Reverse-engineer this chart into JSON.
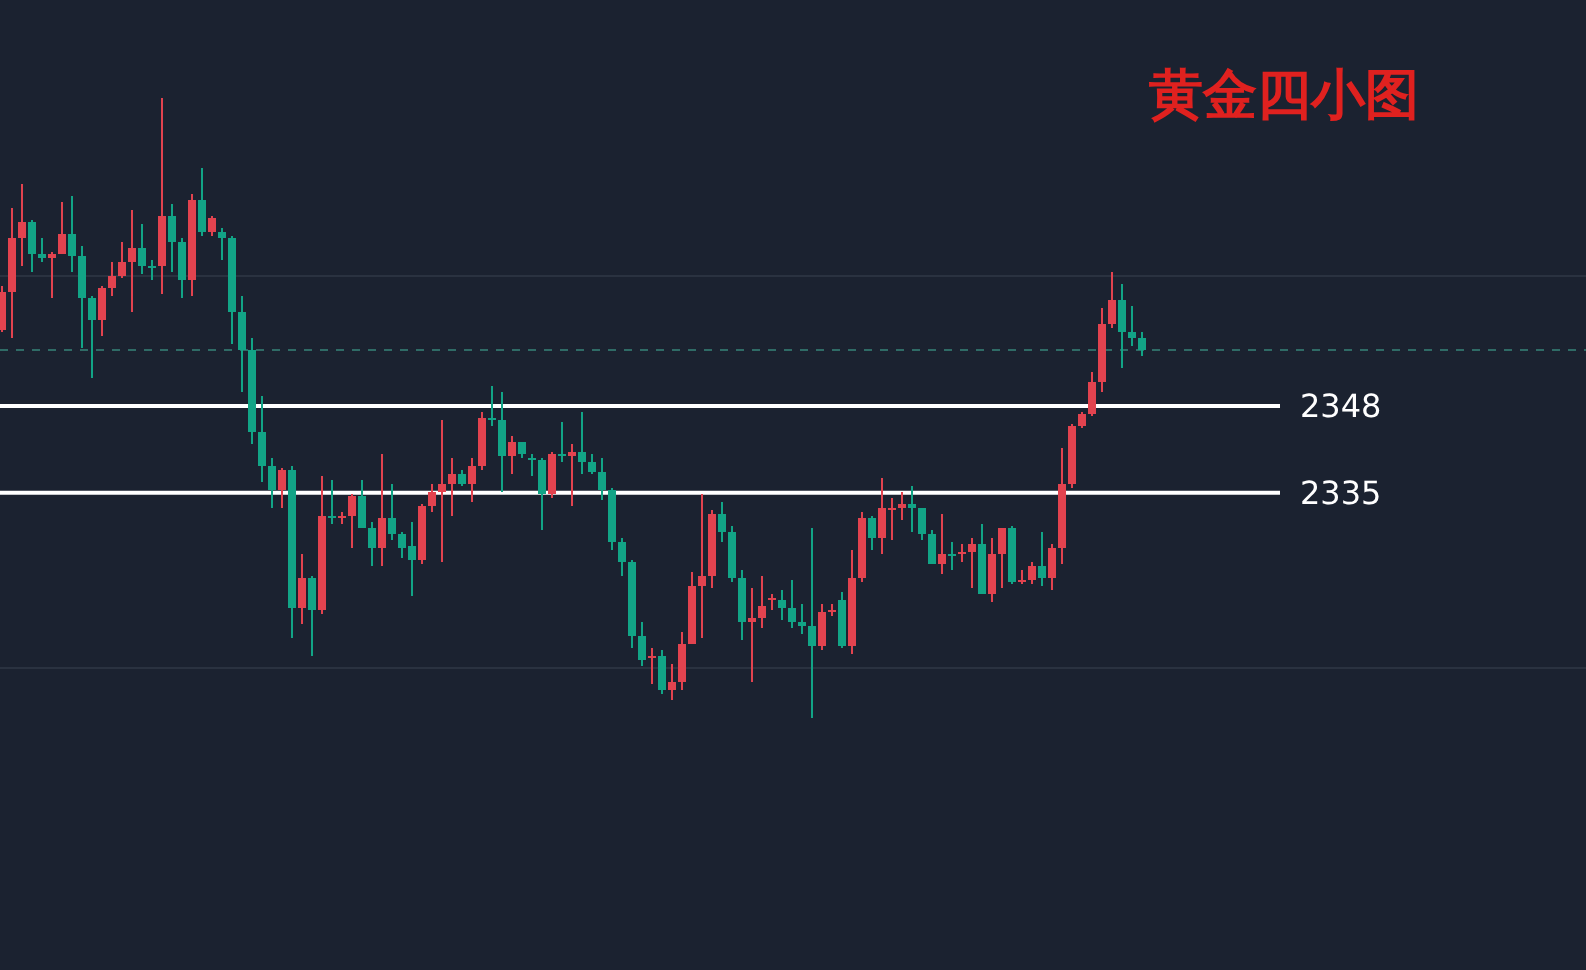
{
  "chart_data": {
    "type": "candlestick",
    "title": "黄金四小图",
    "categories": [
      null,
      null,
      null,
      null,
      null,
      null,
      null,
      null,
      null,
      null,
      null,
      null,
      null,
      null,
      null,
      null,
      null,
      null,
      null,
      null,
      null,
      null,
      null,
      null,
      null,
      null,
      null,
      null,
      null,
      null,
      null,
      null,
      null,
      null,
      null,
      null,
      null,
      null,
      null,
      null,
      null,
      null,
      null,
      null,
      null,
      null,
      null,
      null,
      null,
      null,
      null,
      null,
      null,
      null,
      null,
      null,
      null,
      null,
      null,
      null,
      null,
      null,
      null,
      null,
      null,
      null,
      null,
      null,
      null,
      null,
      null,
      null,
      null,
      null,
      null,
      null,
      null,
      null,
      null,
      null,
      null,
      null,
      null,
      null,
      null,
      null,
      null,
      null,
      null,
      null,
      null,
      null,
      null,
      null,
      null,
      null,
      null,
      null,
      null,
      null,
      null,
      null,
      null,
      null,
      null,
      null,
      null,
      null,
      null,
      null,
      null,
      null,
      null,
      null,
      null
    ],
    "ohlc": [
      [
        2359.4,
        2366.0,
        2359.1,
        2365.1
      ],
      [
        2365.1,
        2377.7,
        2358.2,
        2373.2
      ],
      [
        2373.2,
        2381.3,
        2369.0,
        2375.6
      ],
      [
        2375.6,
        2375.9,
        2368.1,
        2370.8
      ],
      [
        2370.8,
        2373.2,
        2369.6,
        2370.2
      ],
      [
        2370.2,
        2371.1,
        2364.2,
        2370.8
      ],
      [
        2370.8,
        2378.6,
        2370.8,
        2373.8
      ],
      [
        2373.8,
        2379.5,
        2368.1,
        2370.5
      ],
      [
        2370.5,
        2372.0,
        2356.7,
        2364.2
      ],
      [
        2364.2,
        2364.5,
        2352.2,
        2360.9
      ],
      [
        2360.9,
        2366.0,
        2358.5,
        2365.7
      ],
      [
        2365.7,
        2369.6,
        2364.5,
        2367.5
      ],
      [
        2367.5,
        2372.6,
        2367.2,
        2369.6
      ],
      [
        2369.6,
        2377.4,
        2362.1,
        2371.7
      ],
      [
        2371.7,
        2375.3,
        2367.8,
        2369.0
      ],
      [
        2369.0,
        2369.9,
        2366.9,
        2368.7
      ],
      [
        2369.0,
        2394.2,
        2364.8,
        2376.5
      ],
      [
        2376.5,
        2378.3,
        2368.1,
        2372.6
      ],
      [
        2372.6,
        2373.2,
        2364.2,
        2366.9
      ],
      [
        2366.9,
        2379.8,
        2364.5,
        2378.9
      ],
      [
        2378.9,
        2383.7,
        2373.5,
        2374.1
      ],
      [
        2374.1,
        2376.5,
        2373.5,
        2376.2
      ],
      [
        2374.1,
        2374.7,
        2369.9,
        2373.2
      ],
      [
        2373.2,
        2373.5,
        2357.3,
        2362.1
      ],
      [
        2362.1,
        2364.5,
        2350.1,
        2356.4
      ],
      [
        2356.4,
        2358.2,
        2342.3,
        2344.1
      ],
      [
        2344.1,
        2349.5,
        2336.6,
        2339.0
      ],
      [
        2339.0,
        2340.2,
        2332.7,
        2335.4
      ],
      [
        2335.4,
        2338.7,
        2332.7,
        2338.4
      ],
      [
        2338.4,
        2339.0,
        2313.2,
        2317.7
      ],
      [
        2317.7,
        2325.8,
        2315.3,
        2322.2
      ],
      [
        2322.2,
        2322.5,
        2310.5,
        2317.4
      ],
      [
        2317.4,
        2337.5,
        2316.8,
        2331.5
      ],
      [
        2331.5,
        2336.9,
        2330.3,
        2331.2
      ],
      [
        2331.2,
        2332.1,
        2330.3,
        2331.5
      ],
      [
        2331.5,
        2334.8,
        2326.7,
        2334.5
      ],
      [
        2334.5,
        2336.9,
        2329.7,
        2329.7
      ],
      [
        2329.7,
        2330.6,
        2324.0,
        2326.7
      ],
      [
        2326.7,
        2340.8,
        2324.0,
        2331.2
      ],
      [
        2331.2,
        2336.3,
        2327.9,
        2328.8
      ],
      [
        2328.8,
        2329.1,
        2325.2,
        2326.7
      ],
      [
        2327.0,
        2330.6,
        2319.5,
        2324.9
      ],
      [
        2324.9,
        2333.3,
        2324.3,
        2333.0
      ],
      [
        2333.0,
        2336.3,
        2332.1,
        2335.1
      ],
      [
        2335.1,
        2345.9,
        2324.6,
        2336.3
      ],
      [
        2336.3,
        2340.2,
        2331.5,
        2337.8
      ],
      [
        2337.8,
        2338.4,
        2336.0,
        2336.3
      ],
      [
        2336.3,
        2340.2,
        2333.6,
        2339.0
      ],
      [
        2339.0,
        2347.1,
        2338.4,
        2346.2
      ],
      [
        2346.2,
        2351.0,
        2345.0,
        2345.9
      ],
      [
        2345.9,
        2350.1,
        2335.1,
        2340.5
      ],
      [
        2340.5,
        2343.5,
        2337.8,
        2342.6
      ],
      [
        2342.6,
        2342.6,
        2340.2,
        2340.8
      ],
      [
        2340.2,
        2340.8,
        2337.5,
        2339.9
      ],
      [
        2339.9,
        2340.2,
        2329.4,
        2334.8
      ],
      [
        2334.8,
        2341.1,
        2334.2,
        2340.8
      ],
      [
        2340.8,
        2345.6,
        2339.6,
        2340.5
      ],
      [
        2340.5,
        2342.3,
        2333.0,
        2341.1
      ],
      [
        2341.1,
        2347.1,
        2337.8,
        2339.6
      ],
      [
        2339.6,
        2340.8,
        2337.8,
        2338.1
      ],
      [
        2338.1,
        2340.2,
        2333.9,
        2335.4
      ],
      [
        2335.4,
        2335.7,
        2326.4,
        2327.6
      ],
      [
        2327.6,
        2328.2,
        2322.5,
        2324.6
      ],
      [
        2324.6,
        2324.9,
        2311.7,
        2313.5
      ],
      [
        2313.5,
        2315.6,
        2309.0,
        2309.9
      ],
      [
        2310.2,
        2311.7,
        2306.3,
        2310.5
      ],
      [
        2310.5,
        2311.4,
        2304.8,
        2305.4
      ],
      [
        2305.4,
        2309.3,
        2303.9,
        2306.6
      ],
      [
        2306.6,
        2314.1,
        2305.4,
        2312.3
      ],
      [
        2312.3,
        2323.1,
        2312.3,
        2321.0
      ],
      [
        2321.0,
        2334.8,
        2313.2,
        2322.5
      ],
      [
        2322.5,
        2332.4,
        2320.7,
        2331.8
      ],
      [
        2331.8,
        2333.6,
        2327.6,
        2329.1
      ],
      [
        2329.1,
        2330.0,
        2321.6,
        2322.2
      ],
      [
        2322.2,
        2323.4,
        2312.9,
        2315.6
      ],
      [
        2315.6,
        2320.7,
        2306.6,
        2316.2
      ],
      [
        2316.2,
        2322.5,
        2314.7,
        2318.0
      ],
      [
        2318.9,
        2319.8,
        2317.4,
        2319.2
      ],
      [
        2318.9,
        2320.4,
        2315.9,
        2317.7
      ],
      [
        2317.7,
        2321.9,
        2314.7,
        2315.6
      ],
      [
        2315.6,
        2318.3,
        2313.8,
        2315.0
      ],
      [
        2315.0,
        2329.7,
        2301.2,
        2312.0
      ],
      [
        2312.0,
        2318.3,
        2311.4,
        2317.1
      ],
      [
        2317.1,
        2318.3,
        2316.5,
        2317.4
      ],
      [
        2318.9,
        2320.1,
        2311.7,
        2312.0
      ],
      [
        2312.0,
        2326.4,
        2310.8,
        2322.2
      ],
      [
        2322.2,
        2332.1,
        2321.6,
        2331.2
      ],
      [
        2331.2,
        2331.5,
        2326.4,
        2328.2
      ],
      [
        2328.2,
        2337.2,
        2325.8,
        2332.7
      ],
      [
        2332.4,
        2334.2,
        2327.9,
        2332.7
      ],
      [
        2332.7,
        2335.1,
        2330.9,
        2333.3
      ],
      [
        2333.3,
        2336.0,
        2329.1,
        2332.7
      ],
      [
        2332.7,
        2332.7,
        2327.9,
        2328.8
      ],
      [
        2328.8,
        2329.4,
        2324.3,
        2324.3
      ],
      [
        2324.3,
        2331.8,
        2322.8,
        2325.8
      ],
      [
        2325.8,
        2327.6,
        2323.4,
        2325.5
      ],
      [
        2325.8,
        2327.3,
        2324.6,
        2326.1
      ],
      [
        2326.1,
        2328.2,
        2320.7,
        2327.3
      ],
      [
        2327.3,
        2330.3,
        2319.8,
        2319.8
      ],
      [
        2319.8,
        2328.2,
        2318.6,
        2325.8
      ],
      [
        2325.8,
        2329.7,
        2320.7,
        2329.7
      ],
      [
        2329.7,
        2330.0,
        2321.3,
        2321.6
      ],
      [
        2321.6,
        2323.4,
        2321.3,
        2321.9
      ],
      [
        2321.9,
        2324.6,
        2321.3,
        2324.0
      ],
      [
        2324.0,
        2329.1,
        2321.0,
        2322.2
      ],
      [
        2322.2,
        2327.3,
        2320.4,
        2326.7
      ],
      [
        2326.7,
        2341.7,
        2324.3,
        2336.3
      ],
      [
        2336.3,
        2345.3,
        2335.7,
        2345.0
      ],
      [
        2345.0,
        2347.1,
        2344.7,
        2346.8
      ],
      [
        2346.8,
        2353.1,
        2346.5,
        2351.6
      ],
      [
        2351.6,
        2362.7,
        2350.1,
        2360.3
      ],
      [
        2360.3,
        2368.1,
        2359.7,
        2363.9
      ],
      [
        2363.9,
        2366.3,
        2353.7,
        2359.1
      ],
      [
        2359.1,
        2363.0,
        2357.0,
        2358.2
      ],
      [
        2358.2,
        2359.1,
        2355.5,
        2356.4
      ]
    ],
    "colors": [
      "#e2434f",
      "#e2434f",
      "#e2434f",
      "#12a486",
      "#12a486",
      "#e2434f",
      "#e2434f",
      "#12a486",
      "#12a486",
      "#12a486",
      "#e2434f",
      "#e2434f",
      "#e2434f",
      "#e2434f",
      "#12a486",
      "#12a486",
      "#e2434f",
      "#12a486",
      "#12a486",
      "#e2434f",
      "#12a486",
      "#e2434f",
      "#12a486",
      "#12a486",
      "#12a486",
      "#12a486",
      "#12a486",
      "#12a486",
      "#e2434f",
      "#12a486",
      "#e2434f",
      "#12a486",
      "#e2434f",
      "#12a486",
      "#e2434f",
      "#e2434f",
      "#12a486",
      "#12a486",
      "#e2434f",
      "#12a486",
      "#12a486",
      "#12a486",
      "#e2434f",
      "#e2434f",
      "#e2434f",
      "#e2434f",
      "#12a486",
      "#e2434f",
      "#e2434f",
      "#12a486",
      "#12a486",
      "#e2434f",
      "#12a486",
      "#12a486",
      "#12a486",
      "#e2434f",
      "#12a486",
      "#e2434f",
      "#12a486",
      "#12a486",
      "#12a486",
      "#12a486",
      "#12a486",
      "#12a486",
      "#12a486",
      "#e2434f",
      "#12a486",
      "#e2434f",
      "#e2434f",
      "#e2434f",
      "#e2434f",
      "#e2434f",
      "#12a486",
      "#12a486",
      "#12a486",
      "#e2434f",
      "#e2434f",
      "#e2434f",
      "#12a486",
      "#12a486",
      "#12a486",
      "#12a486",
      "#e2434f",
      "#e2434f",
      "#12a486",
      "#e2434f",
      "#e2434f",
      "#12a486",
      "#e2434f",
      "#e2434f",
      "#e2434f",
      "#12a486",
      "#12a486",
      "#12a486",
      "#e2434f",
      "#12a486",
      "#e2434f",
      "#e2434f",
      "#12a486",
      "#e2434f",
      "#e2434f",
      "#12a486",
      "#e2434f",
      "#e2434f",
      "#12a486",
      "#e2434f",
      "#e2434f",
      "#e2434f",
      "#e2434f",
      "#e2434f",
      "#e2434f",
      "#e2434f",
      "#12a486",
      "#12a486",
      "#12a486"
    ],
    "ylim": [
      2263.4,
      2408.9
    ],
    "yticks": [
      {
        "value": 2367.5,
        "label": null
      },
      {
        "value": 2308.7,
        "label": null
      }
    ],
    "grid": "y",
    "ref_lines": [
      {
        "axis": "y",
        "value": 2348,
        "label": "2348",
        "color": "#ffffff",
        "line_style": "solid"
      },
      {
        "axis": "y",
        "value": 2335,
        "label": "2335",
        "color": "#ffffff",
        "line_style": "solid"
      },
      {
        "axis": "y",
        "value": 2356.4,
        "label": null,
        "color": "#2f6b66",
        "line_style": "dashed"
      }
    ]
  }
}
